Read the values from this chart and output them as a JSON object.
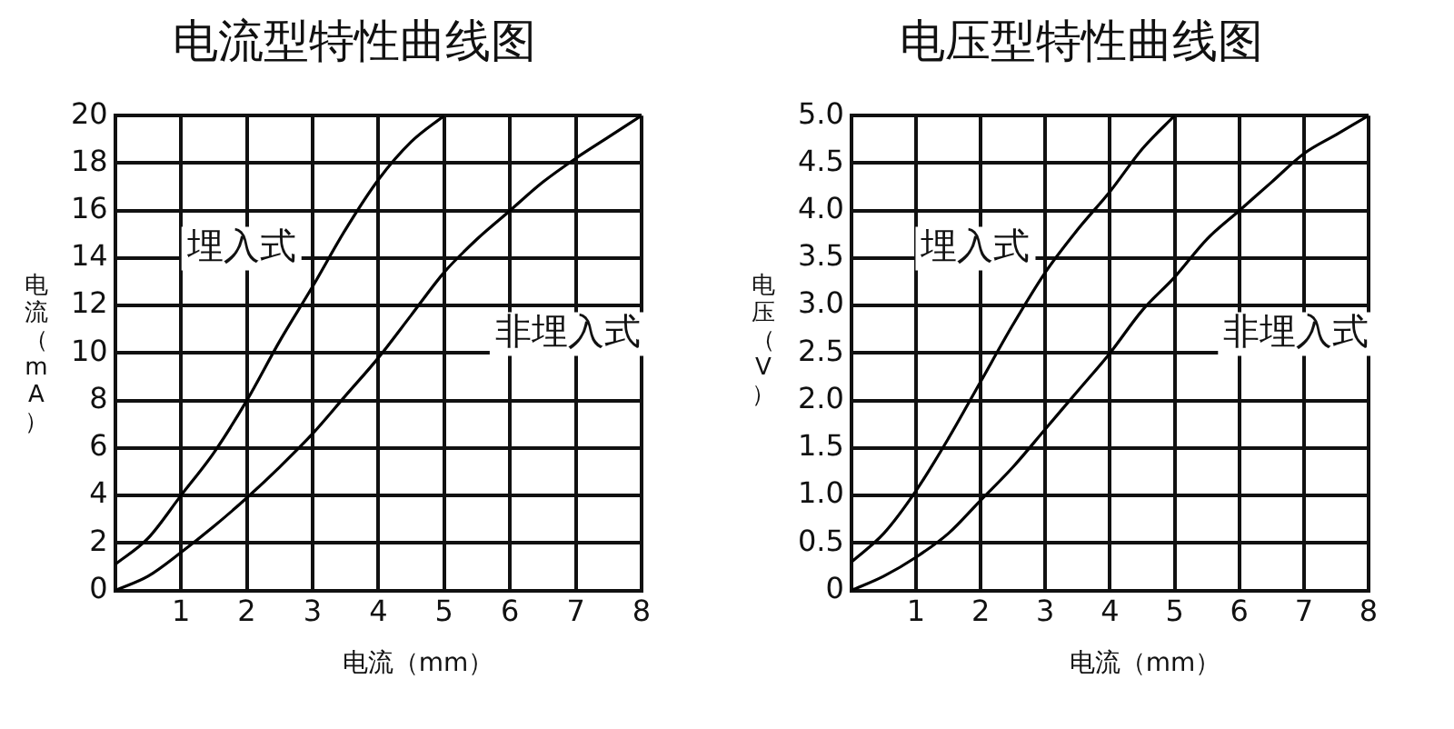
{
  "chart_data": [
    {
      "type": "line",
      "title": "电流型特性曲线图",
      "xlabel": "电流（mm）",
      "ylabel": "电流（mA）",
      "x": [
        0,
        0.5,
        1,
        1.5,
        2,
        2.5,
        3,
        3.5,
        4,
        4.5,
        5,
        5.5,
        6,
        6.5,
        7,
        7.5,
        8
      ],
      "series": [
        {
          "color": "#000000",
          "x": [
            0,
            0.5,
            1,
            1.5,
            2,
            2.5,
            3,
            3.5,
            4,
            4.5,
            5
          ],
          "values": [
            1.1,
            2.2,
            4.0,
            5.8,
            8.0,
            10.5,
            12.8,
            15.2,
            17.3,
            18.9,
            20
          ]
        },
        {
          "color": "#000000",
          "values": [
            0,
            0.6,
            1.6,
            2.7,
            3.9,
            5.2,
            6.6,
            8.2,
            9.8,
            11.6,
            13.4,
            14.8,
            16.0,
            17.2,
            18.2,
            19.1,
            20
          ]
        }
      ],
      "annotations": [
        "埋入式",
        "非埋入式"
      ],
      "xlim": [
        0,
        8
      ],
      "xticks": [
        1,
        2,
        3,
        4,
        5,
        6,
        7,
        8
      ],
      "ylim": [
        0,
        20
      ],
      "yticks": [
        0,
        2,
        4,
        6,
        8,
        10,
        12,
        14,
        16,
        18,
        20
      ],
      "grid": true,
      "legend": false,
      "marker": "none",
      "line_style": "solid"
    },
    {
      "type": "line",
      "title": "电压型特性曲线图",
      "xlabel": "电流（mm）",
      "ylabel": "电压（V）",
      "x": [
        0,
        0.5,
        1,
        1.5,
        2,
        2.5,
        3,
        3.5,
        4,
        4.5,
        5,
        5.5,
        6,
        6.5,
        7,
        7.5,
        8
      ],
      "series": [
        {
          "color": "#000000",
          "x": [
            0,
            0.5,
            1,
            1.5,
            2,
            2.5,
            3,
            3.5,
            4,
            4.5,
            5
          ],
          "values": [
            0.3,
            0.6,
            1.05,
            1.6,
            2.2,
            2.8,
            3.35,
            3.8,
            4.2,
            4.65,
            5.0
          ]
        },
        {
          "color": "#000000",
          "values": [
            0,
            0.15,
            0.35,
            0.6,
            0.95,
            1.3,
            1.7,
            2.1,
            2.5,
            2.95,
            3.3,
            3.7,
            4.0,
            4.3,
            4.6,
            4.8,
            5.0
          ]
        }
      ],
      "annotations": [
        "埋入式",
        "非埋入式"
      ],
      "xlim": [
        0,
        8
      ],
      "xticks": [
        1,
        2,
        3,
        4,
        5,
        6,
        7,
        8
      ],
      "ylim": [
        0,
        5
      ],
      "yticks": [
        {
          "value": 0,
          "label": "0"
        },
        0.5,
        {
          "value": 1,
          "label": "1.0"
        },
        1.5,
        {
          "value": 2,
          "label": "2.0"
        },
        2.5,
        {
          "value": 3,
          "label": "3.0"
        },
        3.5,
        {
          "value": 4,
          "label": "4.0"
        },
        4.5,
        {
          "value": 5,
          "label": "5.0"
        }
      ],
      "grid": true,
      "legend": false,
      "marker": "none",
      "line_style": "solid"
    }
  ]
}
